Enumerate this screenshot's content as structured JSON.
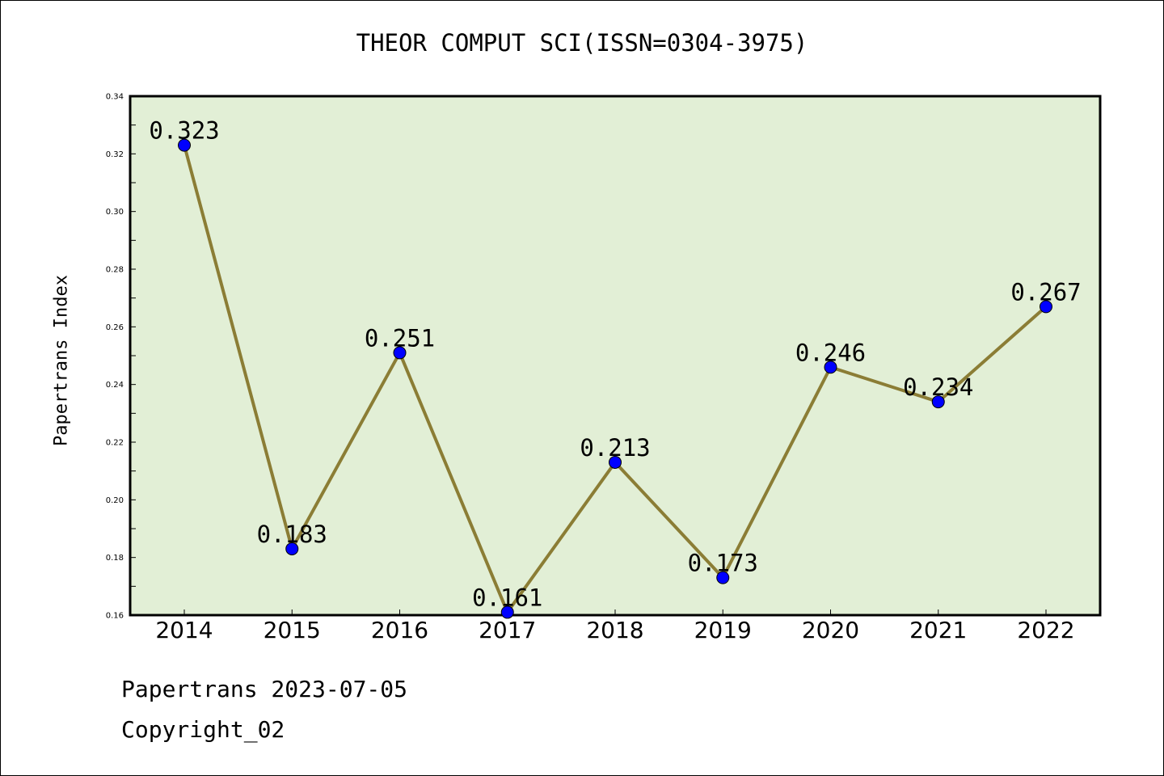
{
  "chart_data": {
    "type": "line",
    "title": "THEOR COMPUT SCI(ISSN=0304-3975)",
    "xlabel": "",
    "ylabel": "Papertrans Index",
    "categories": [
      "2014",
      "2015",
      "2016",
      "2017",
      "2018",
      "2019",
      "2020",
      "2021",
      "2022"
    ],
    "series": [
      {
        "values": [
          0.323,
          0.183,
          0.251,
          0.161,
          0.213,
          0.173,
          0.246,
          0.234,
          0.267
        ],
        "data_labels": [
          "0.323",
          "0.183",
          "0.251",
          "0.161",
          "0.213",
          "0.173",
          "0.246",
          "0.234",
          "0.267"
        ]
      }
    ],
    "ylim": [
      0.16,
      0.34
    ],
    "yticks": [
      "0.16",
      "0.18",
      "0.20",
      "0.22",
      "0.24",
      "0.26",
      "0.28",
      "0.30",
      "0.32",
      "0.34"
    ],
    "grid": false,
    "colors": {
      "plot_background": "#e2efd6",
      "line": "#8b7d35",
      "marker": "#0000ff"
    }
  },
  "footer": {
    "date_text": "Papertrans 2023-07-05",
    "copyright_text": "Copyright_02"
  }
}
